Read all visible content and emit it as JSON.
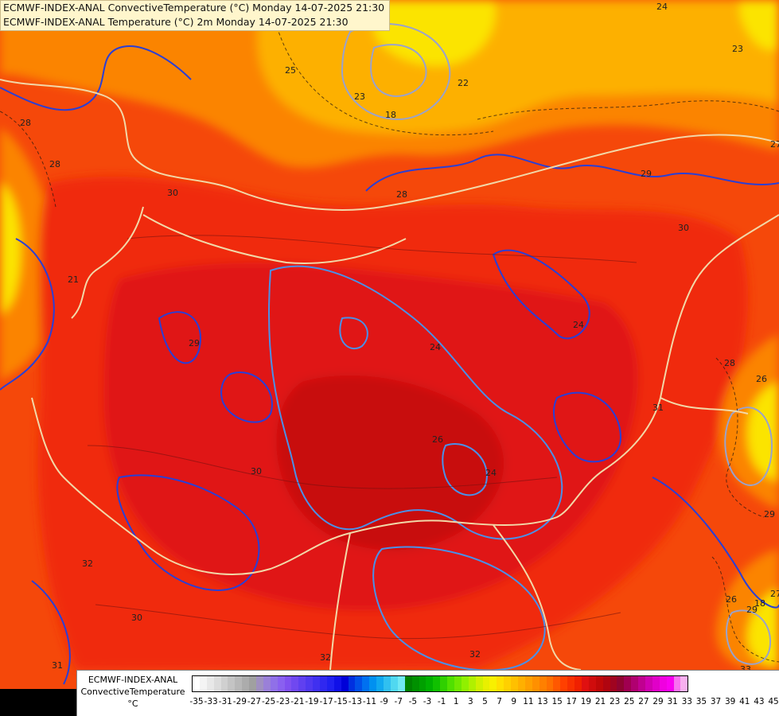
{
  "header": {
    "line1": "ECMWF-INDEX-ANAL ConvectiveTemperature (°C) Monday 14-07-2025 21:30",
    "line2": "ECMWF-INDEX-ANAL Temperature (°C) 2m Monday 14-07-2025 21:30"
  },
  "legend": {
    "title_line1": "ECMWF-INDEX-ANAL",
    "title_line2": "ConvectiveTemperature",
    "title_line3": "°C",
    "ticks": [
      "-35",
      "-33",
      "-31",
      "-29",
      "-27",
      "-25",
      "-23",
      "-21",
      "-19",
      "-17",
      "-15",
      "-13",
      "-11",
      "-9",
      "-7",
      "-5",
      "-3",
      "-1",
      "1",
      "3",
      "5",
      "7",
      "9",
      "11",
      "13",
      "15",
      "17",
      "19",
      "21",
      "23",
      "25",
      "27",
      "29",
      "31",
      "33",
      "35",
      "37",
      "39",
      "41",
      "43",
      "45"
    ],
    "colors": [
      "#ffffff",
      "#f4f4f4",
      "#e8e8e8",
      "#dcdcdc",
      "#d0d0d0",
      "#c4c4c4",
      "#b8b8b8",
      "#acacac",
      "#a0a0a0",
      "#a090c0",
      "#9a80d8",
      "#9070e8",
      "#8a60f0",
      "#8050f0",
      "#7048f0",
      "#6040f0",
      "#5038f0",
      "#4030f0",
      "#3028f0",
      "#2020f0",
      "#1010e8",
      "#0000d8",
      "#0030e0",
      "#0050e8",
      "#0070f0",
      "#0090f0",
      "#10a8f0",
      "#30c0f0",
      "#50d8f0",
      "#70e8f4",
      "#008000",
      "#009000",
      "#00a000",
      "#00b000",
      "#10c000",
      "#30d000",
      "#50e000",
      "#70e800",
      "#90f000",
      "#b0f000",
      "#d0f000",
      "#e8f000",
      "#f8f000",
      "#ffe000",
      "#ffd000",
      "#ffc000",
      "#ffb000",
      "#ffa000",
      "#ff9000",
      "#ff8000",
      "#ff7000",
      "#ff5800",
      "#ff4000",
      "#f83000",
      "#f02000",
      "#e01010",
      "#d00c0c",
      "#c00808",
      "#b00510",
      "#a00420",
      "#900430",
      "#a00050",
      "#b00070",
      "#c00090",
      "#d000b0",
      "#e000c8",
      "#f000e0",
      "#f800f0",
      "#f870f0",
      "#f8b0f0"
    ],
    "field_colors": {
      "hot_dark": "#c80808",
      "hot": "#e01212",
      "red": "#f02a0a",
      "red_orange": "#f5480a",
      "orange": "#fb8400",
      "amber": "#fdb000",
      "yellow": "#fbe400"
    }
  },
  "map": {
    "contour_labels": [
      {
        "text": "25"
      },
      {
        "text": "23"
      },
      {
        "text": "22"
      },
      {
        "text": "18"
      },
      {
        "text": "24"
      },
      {
        "text": "23"
      },
      {
        "text": "28"
      },
      {
        "text": "30"
      },
      {
        "text": "29"
      },
      {
        "text": "30"
      },
      {
        "text": "29"
      },
      {
        "text": "30"
      },
      {
        "text": "31"
      },
      {
        "text": "32"
      },
      {
        "text": "26"
      },
      {
        "text": "24"
      },
      {
        "text": "32"
      },
      {
        "text": "30"
      },
      {
        "text": "31"
      },
      {
        "text": "32"
      },
      {
        "text": "28"
      },
      {
        "text": "27"
      },
      {
        "text": "26"
      },
      {
        "text": "18"
      },
      {
        "text": "27"
      },
      {
        "text": "29"
      },
      {
        "text": "24"
      },
      {
        "text": "33"
      },
      {
        "text": "28"
      },
      {
        "text": "21"
      },
      {
        "text": "28"
      },
      {
        "text": "26"
      },
      {
        "text": "29"
      },
      {
        "text": "24"
      }
    ]
  }
}
